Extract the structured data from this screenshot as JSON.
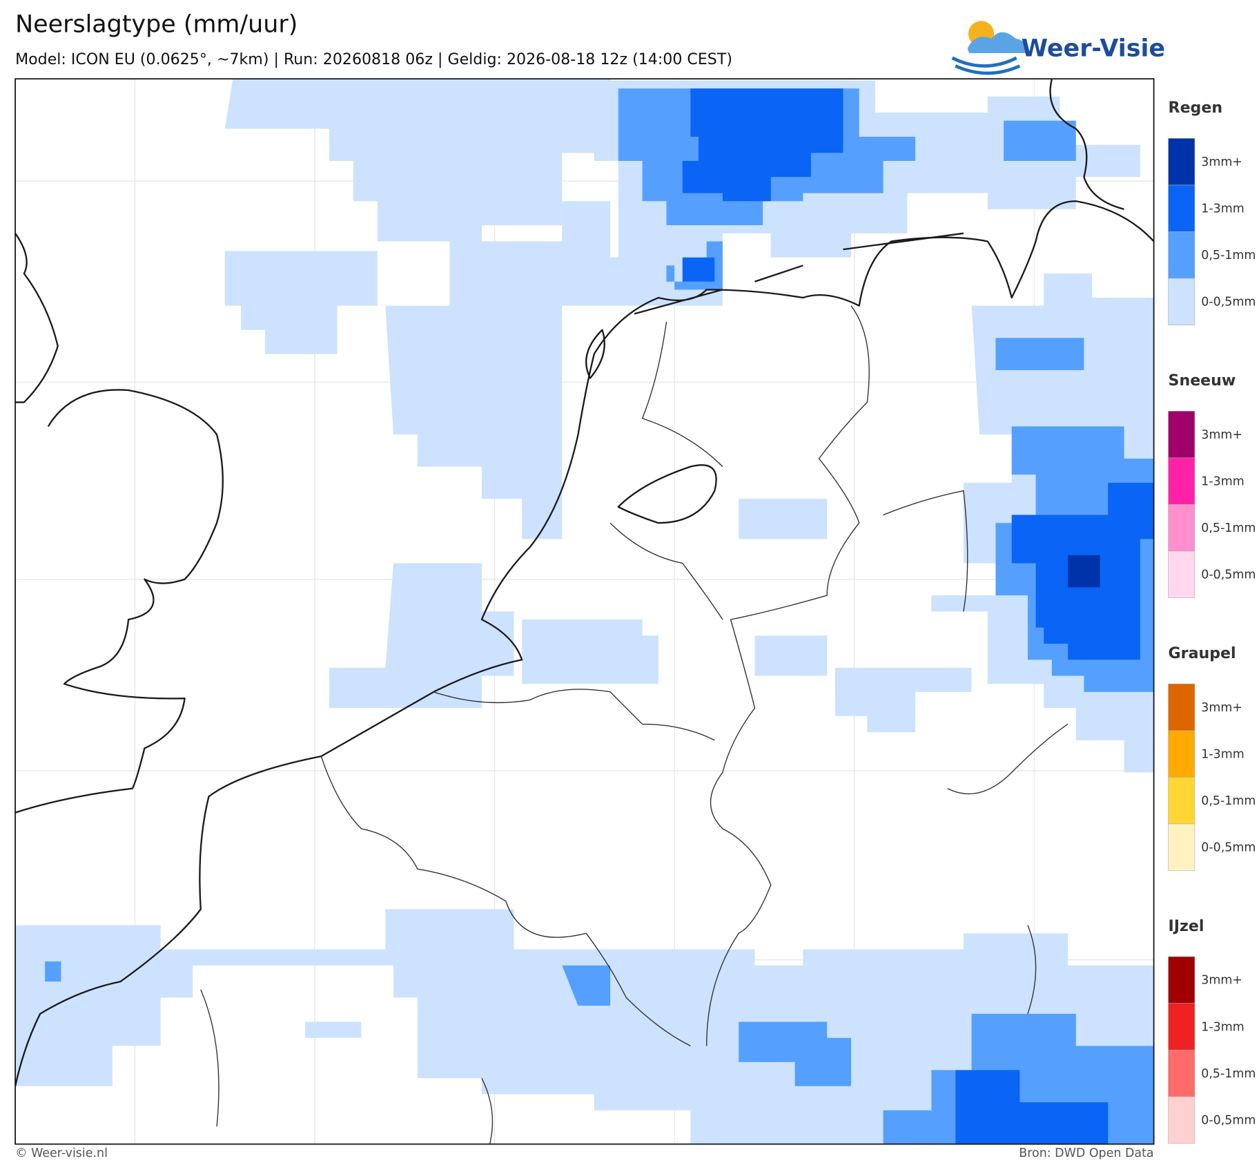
{
  "header": {
    "title": "Neerslagtype (mm/uur)",
    "subtitle": "Model: ICON EU (0.0625°, ~7km)  |  Run: 20260818 06z  |  Geldig: 2026-08-18 12z (14:00 CEST)"
  },
  "logo": {
    "text": "Weer-Visie"
  },
  "legend": [
    {
      "title": "Regen",
      "items": [
        {
          "label": "3mm+",
          "color": "#0033aa"
        },
        {
          "label": "1-3mm",
          "color": "#0a64f5"
        },
        {
          "label": "0,5-1mm",
          "color": "#55a0ff"
        },
        {
          "label": "0-0,5mm",
          "color": "#cce2ff"
        }
      ]
    },
    {
      "title": "Sneeuw",
      "items": [
        {
          "label": "3mm+",
          "color": "#a0006a"
        },
        {
          "label": "1-3mm",
          "color": "#ff22a8"
        },
        {
          "label": "0,5-1mm",
          "color": "#ff8fcf"
        },
        {
          "label": "0-0,5mm",
          "color": "#ffd8ee"
        }
      ]
    },
    {
      "title": "Graupel",
      "items": [
        {
          "label": "3mm+",
          "color": "#dd6600"
        },
        {
          "label": "1-3mm",
          "color": "#ffaa00"
        },
        {
          "label": "0,5-1mm",
          "color": "#ffd633"
        },
        {
          "label": "0-0,5mm",
          "color": "#fff2c0"
        }
      ]
    },
    {
      "title": "IJzel",
      "items": [
        {
          "label": "3mm+",
          "color": "#a00000"
        },
        {
          "label": "1-3mm",
          "color": "#ee2222"
        },
        {
          "label": "0,5-1mm",
          "color": "#ff6b6b"
        },
        {
          "label": "0-0,5mm",
          "color": "#ffd0d0"
        }
      ]
    }
  ],
  "footer": {
    "left": "© Weer-visie.nl",
    "right": "Bron: DWD Open Data"
  }
}
